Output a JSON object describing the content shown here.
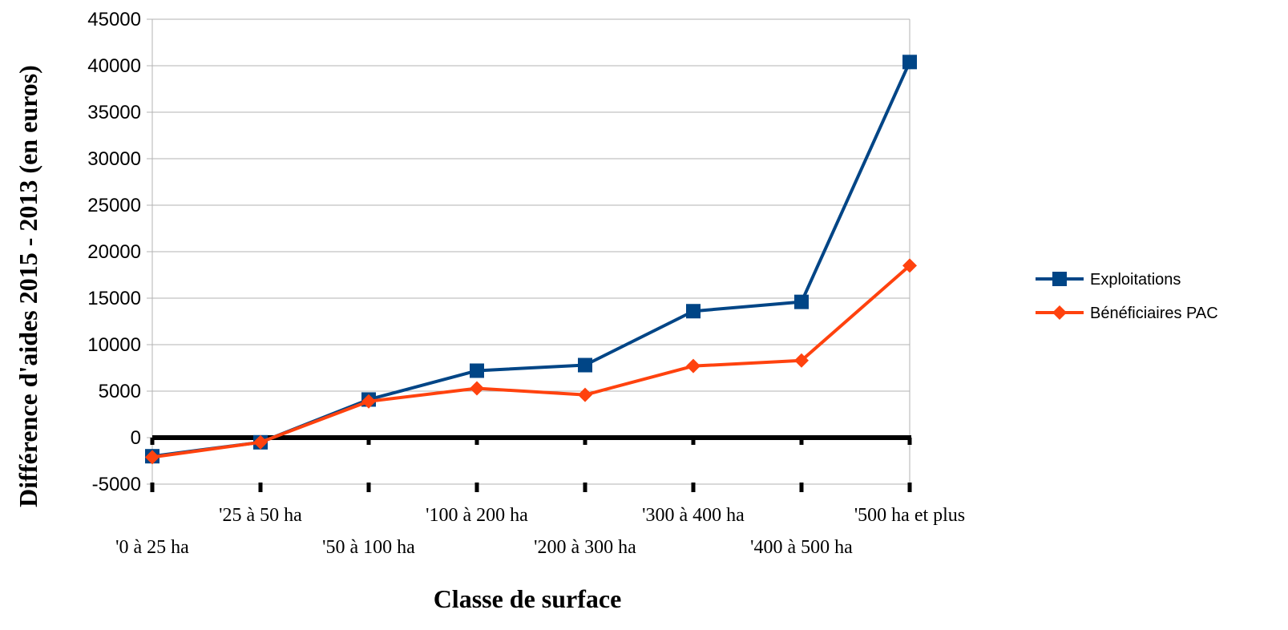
{
  "chart_data": {
    "type": "line",
    "xlabel": "Classe de surface",
    "ylabel": "Différence d'aides 2015 - 2013 (en euros)",
    "categories": [
      "'0 à 25 ha",
      "'25 à 50 ha",
      "'50 à 100 ha",
      "'100 à 200 ha",
      "'200 à 300 ha",
      "'300 à 400 ha",
      "'400 à 500 ha",
      "'500 ha et plus"
    ],
    "ylim": [
      -5000,
      45000
    ],
    "yticks": [
      -5000,
      0,
      5000,
      10000,
      15000,
      20000,
      25000,
      30000,
      35000,
      40000,
      45000
    ],
    "grid": "horizontal",
    "legend_position": "right",
    "series": [
      {
        "name": "Exploitations",
        "color": "#004586",
        "marker": "square",
        "values": [
          -2000,
          -500,
          4100,
          7200,
          7800,
          13600,
          14600,
          40400
        ]
      },
      {
        "name": "Bénéficiaires PAC",
        "color": "#ff420e",
        "marker": "diamond",
        "values": [
          -2100,
          -500,
          3900,
          5300,
          4600,
          7700,
          8300,
          18500
        ]
      }
    ]
  }
}
